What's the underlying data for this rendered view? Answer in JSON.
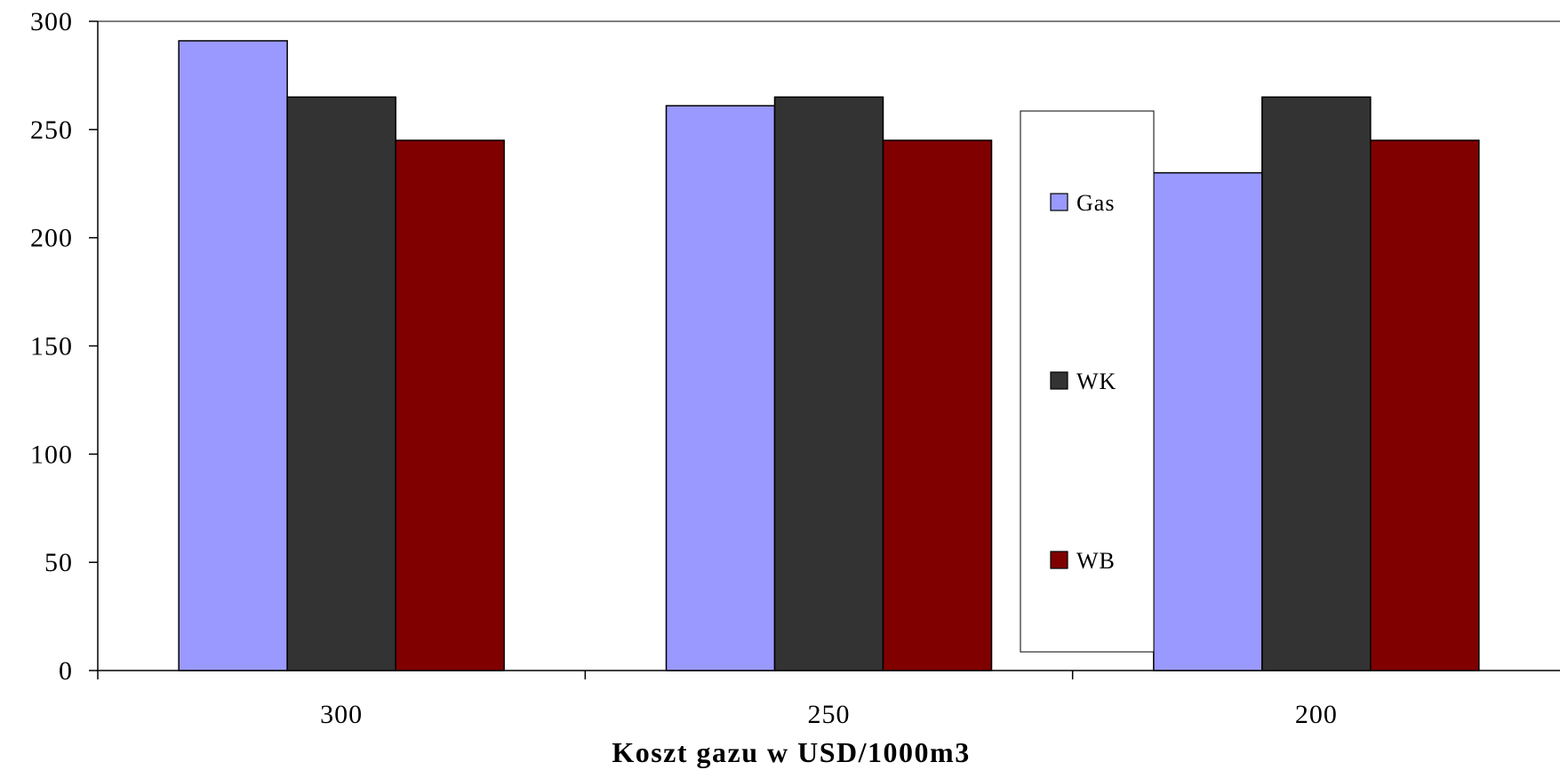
{
  "chart_data": {
    "type": "bar",
    "categories": [
      "300",
      "250",
      "200"
    ],
    "series": [
      {
        "name": "Gas",
        "values": [
          291,
          261,
          230
        ],
        "color": "#9999FF"
      },
      {
        "name": "WK",
        "values": [
          265,
          265,
          265
        ],
        "color": "#333333"
      },
      {
        "name": "WB",
        "values": [
          245,
          245,
          245
        ],
        "color": "#800000"
      }
    ],
    "title": "",
    "xlabel": "Koszt gazu w USD/1000m3",
    "ylabel": "",
    "ylim": [
      0,
      300
    ],
    "yticks": [
      "0",
      "50",
      "100",
      "150",
      "200",
      "250",
      "300"
    ],
    "grid": false,
    "legend_position": "right-center"
  }
}
